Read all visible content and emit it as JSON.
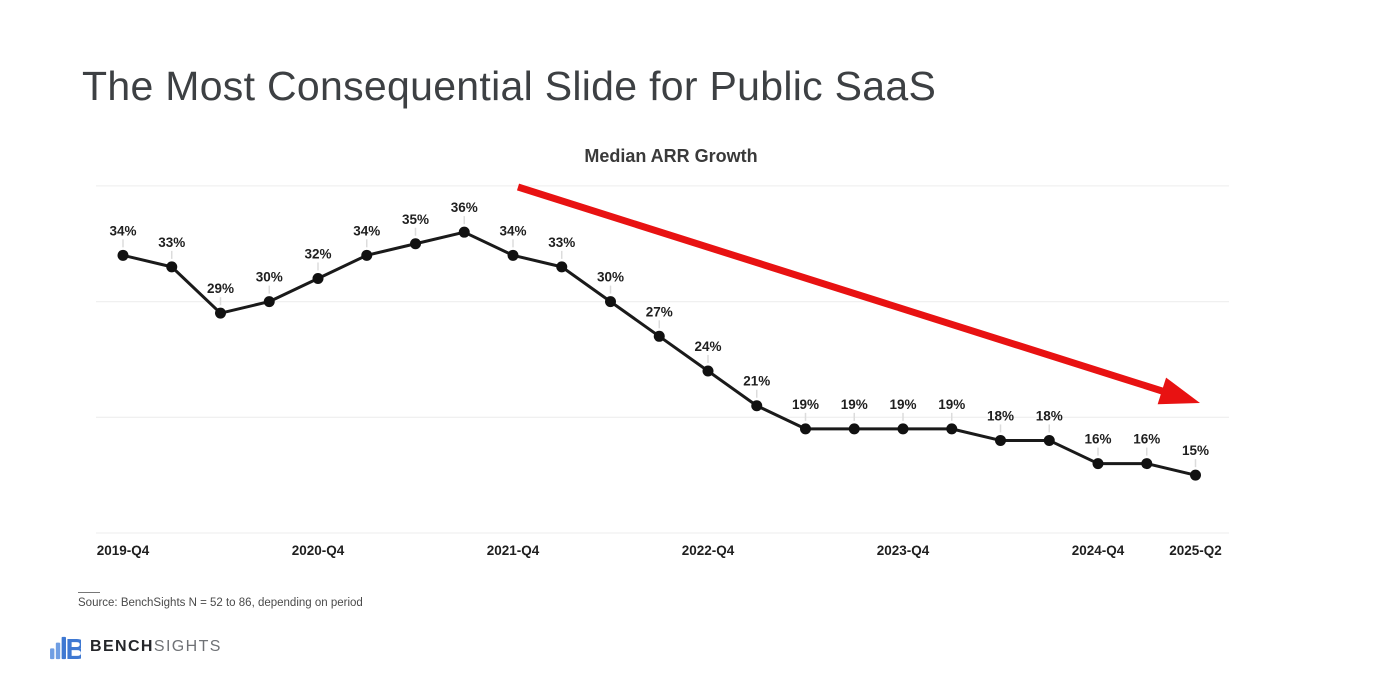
{
  "page": {
    "title": "The Most Consequential Slide for Public SaaS"
  },
  "chart_data": {
    "type": "line",
    "title": "Median ARR Growth",
    "x": [
      "2019-Q4",
      "2020-Q1",
      "2020-Q2",
      "2020-Q3",
      "2020-Q4",
      "2021-Q1",
      "2021-Q2",
      "2021-Q3",
      "2021-Q4",
      "2022-Q1",
      "2022-Q2",
      "2022-Q3",
      "2022-Q4",
      "2023-Q1",
      "2023-Q2",
      "2023-Q3",
      "2023-Q4",
      "2024-Q1",
      "2024-Q2",
      "2024-Q3",
      "2024-Q4",
      "2025-Q1",
      "2025-Q2"
    ],
    "values": [
      34,
      33,
      29,
      30,
      32,
      34,
      35,
      36,
      34,
      33,
      30,
      27,
      24,
      21,
      19,
      19,
      19,
      19,
      18,
      18,
      16,
      16,
      15
    ],
    "point_labels": [
      "34%",
      "33%",
      "29%",
      "30%",
      "32%",
      "34%",
      "35%",
      "36%",
      "34%",
      "33%",
      "30%",
      "27%",
      "24%",
      "21%",
      "19%",
      "19%",
      "19%",
      "19%",
      "18%",
      "18%",
      "16%",
      "16%",
      "15%"
    ],
    "x_ticks": [
      {
        "i": 0,
        "label": "2019-Q4"
      },
      {
        "i": 4,
        "label": "2020-Q4"
      },
      {
        "i": 8,
        "label": "2021-Q4"
      },
      {
        "i": 12,
        "label": "2022-Q4"
      },
      {
        "i": 16,
        "label": "2023-Q4"
      },
      {
        "i": 20,
        "label": "2024-Q4"
      },
      {
        "i": 22,
        "label": "2025-Q2"
      }
    ],
    "ylim": [
      10,
      40
    ],
    "y_gridlines": [
      10,
      20,
      30,
      40
    ],
    "grid_on": true,
    "legend": "none",
    "line_color": "#1a1a1a",
    "marker_color": "#111111",
    "label_color": "#1f1f1f",
    "grid_color": "#f0f0f0",
    "annotation_arrow": {
      "color": "#e81212",
      "from": [
        518,
        187
      ],
      "to": [
        1200,
        403
      ]
    }
  },
  "footer": {
    "source": "Source: BenchSights N = 52 to 86, depending on period",
    "logo": {
      "bold": "BENCH",
      "light": "SIGHTS",
      "icon": "bar-chart-b-icon",
      "icon_blue": "#3e78d2",
      "icon_bar_blue": "#6f9ee3"
    }
  }
}
